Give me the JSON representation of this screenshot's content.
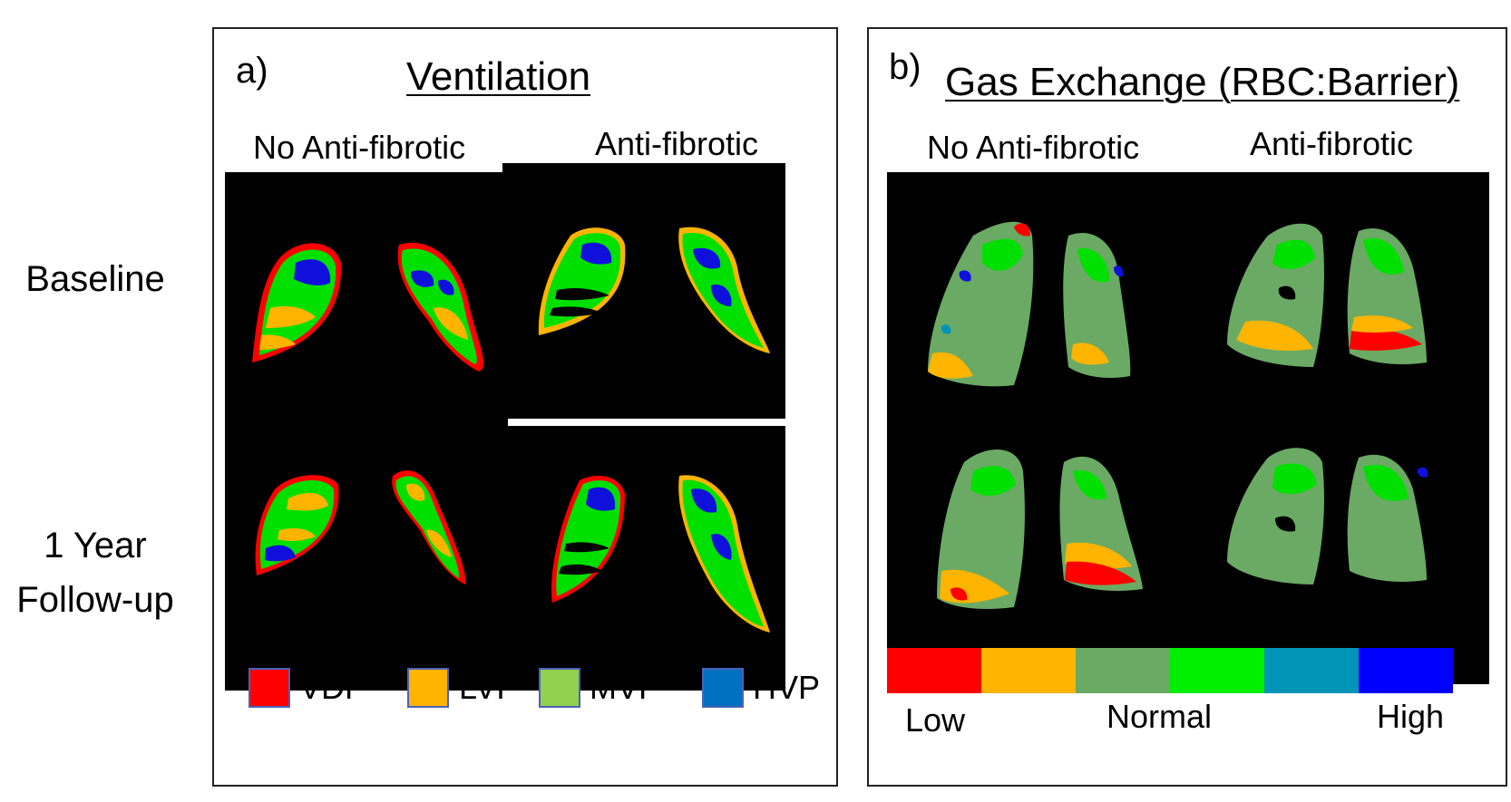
{
  "row_labels": {
    "baseline": "Baseline",
    "followup_line1": "1 Year",
    "followup_line2": "Follow-up"
  },
  "panel_a": {
    "label": "a)",
    "title": "Ventilation",
    "col_no_antifibrotic": "No Anti-fibrotic",
    "col_antifibrotic": "Anti-fibrotic",
    "legend": [
      {
        "label": "VDP",
        "color": "#ff0000"
      },
      {
        "label": "LVP",
        "color": "#ffb400"
      },
      {
        "label": "MVP",
        "color": "#92d050"
      },
      {
        "label": "HVP",
        "color": "#0070c0"
      }
    ]
  },
  "panel_b": {
    "label": "b)",
    "title": "Gas Exchange (RBC:Barrier)",
    "col_no_antifibrotic": "No Anti-fibrotic",
    "col_antifibrotic": "Anti-fibrotic",
    "colorbar": {
      "colors": [
        "#ff0000",
        "#ffb400",
        "#6aaa64",
        "#00ee00",
        "#0095b6",
        "#0000ff"
      ],
      "low": "Low",
      "normal": "Normal",
      "high": "High"
    }
  },
  "colors": {
    "red": "#ff0000",
    "orange": "#ffb400",
    "green": "#00e000",
    "blue": "#1010dd",
    "sage": "#6aaa64",
    "teal": "#0095b6"
  }
}
